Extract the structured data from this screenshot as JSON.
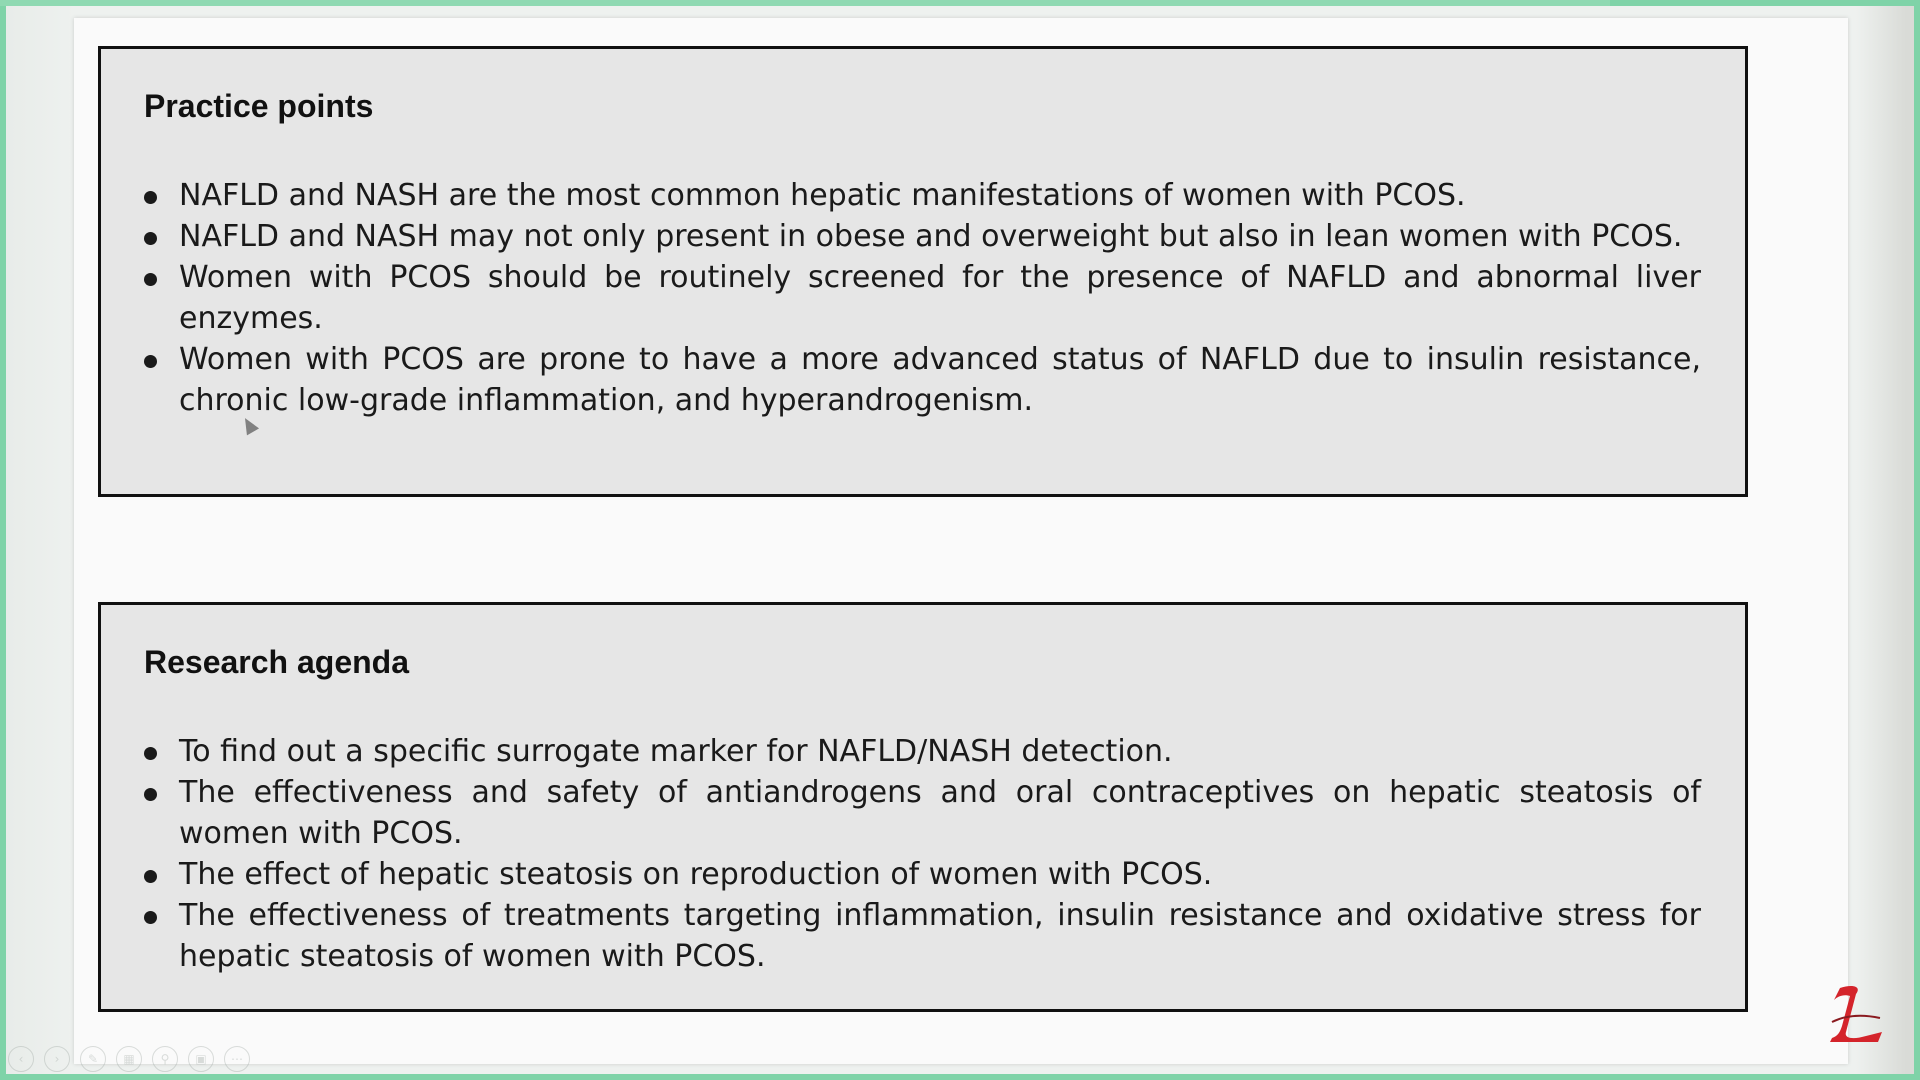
{
  "practice": {
    "title": "Practice points",
    "items": [
      "NAFLD and NASH are the most common hepatic manifestations of women with PCOS.",
      "NAFLD and NASH may not only present in obese and overweight but also in lean women with PCOS.",
      "Women with PCOS should be routinely screened for the presence of NAFLD and abnormal liver enzymes.",
      "Women with PCOS are prone to have a more advanced status of NAFLD due to insulin resistance, chronic low-grade inflammation, and hyperandrogenism."
    ]
  },
  "research": {
    "title": "Research agenda",
    "items": [
      "To find out a specific surrogate marker for NAFLD/NASH detection.",
      "The effectiveness and safety of antiandrogens and oral contraceptives on hepatic steatosis of women with PCOS.",
      "The effect of hepatic steatosis on reproduction of women with PCOS.",
      "The effectiveness of treatments targeting inflammation, insulin resistance and oxidative stress for hepatic steatosis of women with PCOS."
    ]
  },
  "colors": {
    "frame_accent": "#7fd3a8",
    "box_fill": "#e6e6e6",
    "logo_red": "#d4242b"
  },
  "toolbar": {
    "icons": [
      "prev-icon",
      "next-icon",
      "pen-icon",
      "slides-icon",
      "zoom-icon",
      "subtitle-icon",
      "more-icon"
    ]
  }
}
